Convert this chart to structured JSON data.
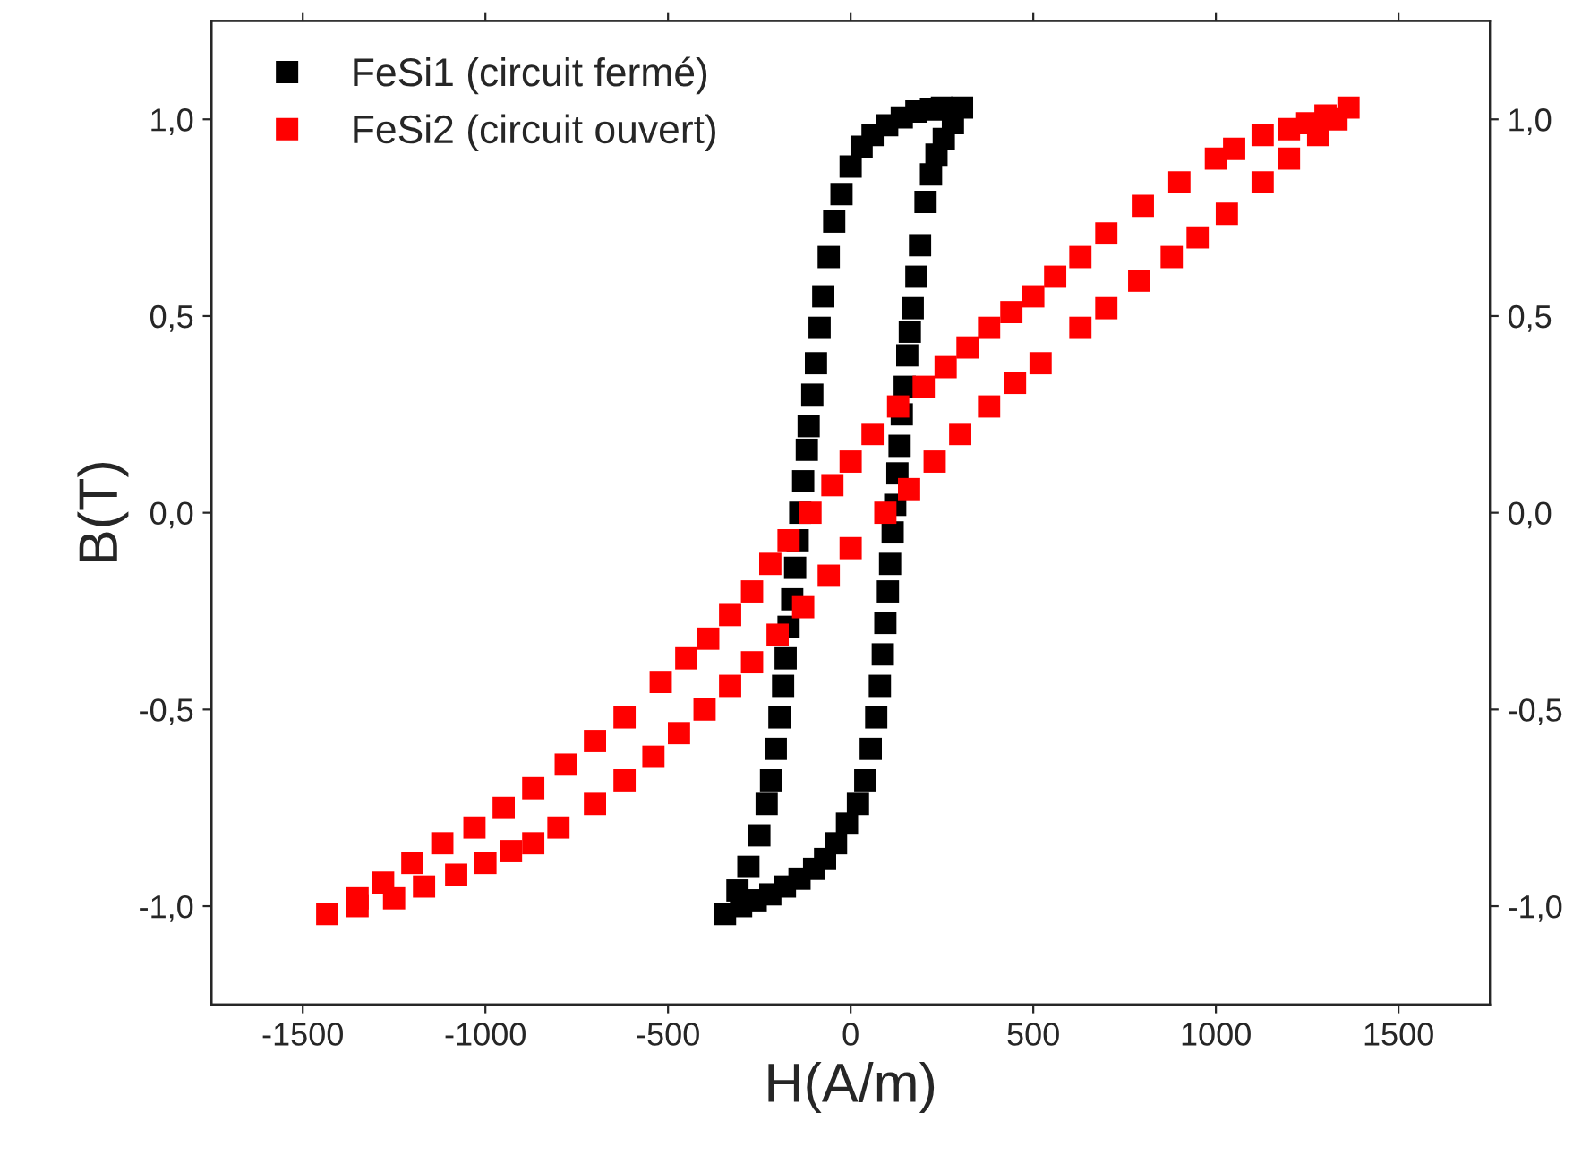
{
  "chart_data": {
    "type": "scatter",
    "xlabel": "H(A/m)",
    "ylabel": "B(T)",
    "xlim": [
      -1750,
      1750
    ],
    "xticks": [
      -1500,
      -1000,
      -500,
      0,
      500,
      1000,
      1500
    ],
    "ylim": [
      -1.25,
      1.25
    ],
    "yticks": [
      {
        "value": -1.0,
        "label": "-1,0"
      },
      {
        "value": -0.5,
        "label": "-0,5"
      },
      {
        "value": 0.0,
        "label": "0,0"
      },
      {
        "value": 0.5,
        "label": "0,5"
      },
      {
        "value": 1.0,
        "label": "1,0"
      }
    ],
    "y2lim": [
      -1.25,
      1.25
    ],
    "y2ticks": [
      {
        "value": -1.0,
        "label": "-1,0"
      },
      {
        "value": -0.5,
        "label": "-0,5"
      },
      {
        "value": 0.0,
        "label": "0,0"
      },
      {
        "value": 0.5,
        "label": "0,5"
      },
      {
        "value": 1.0,
        "label": "1,0"
      }
    ],
    "marker": "square",
    "grid": false,
    "legend": "top left",
    "series": [
      {
        "name": "FeSi1 (circuit fermé)",
        "color": "#000000",
        "x": [
          305,
          250,
          220,
          180,
          140,
          100,
          60,
          30,
          0,
          -25,
          -45,
          -60,
          -75,
          -85,
          -95,
          -105,
          -115,
          -120,
          -130,
          -138,
          -145,
          -152,
          -160,
          -170,
          -178,
          -185,
          -195,
          -205,
          -218,
          -230,
          -250,
          -280,
          -310,
          -344,
          -300,
          -260,
          -220,
          -180,
          -140,
          -100,
          -70,
          -40,
          -10,
          20,
          40,
          55,
          70,
          80,
          88,
          95,
          102,
          108,
          115,
          122,
          128,
          134,
          140,
          148,
          155,
          162,
          170,
          180,
          190,
          205,
          220,
          235,
          255,
          280
        ],
        "values": [
          1.03,
          1.03,
          1.025,
          1.02,
          1.005,
          0.985,
          0.96,
          0.93,
          0.88,
          0.81,
          0.74,
          0.65,
          0.55,
          0.47,
          0.38,
          0.3,
          0.22,
          0.16,
          0.08,
          0.0,
          -0.07,
          -0.14,
          -0.22,
          -0.29,
          -0.37,
          -0.44,
          -0.52,
          -0.6,
          -0.68,
          -0.74,
          -0.82,
          -0.9,
          -0.96,
          -1.02,
          -1.0,
          -0.985,
          -0.97,
          -0.95,
          -0.93,
          -0.905,
          -0.88,
          -0.84,
          -0.79,
          -0.74,
          -0.68,
          -0.6,
          -0.52,
          -0.44,
          -0.36,
          -0.28,
          -0.2,
          -0.13,
          -0.05,
          0.02,
          0.1,
          0.17,
          0.25,
          0.32,
          0.4,
          0.46,
          0.52,
          0.6,
          0.68,
          0.79,
          0.86,
          0.91,
          0.95,
          0.99
        ]
      },
      {
        "name": "FeSi2 (circuit ouvert)",
        "color": "#ff0000",
        "x": [
          1363,
          1300,
          1250,
          1200,
          1128,
          1050,
          1000,
          900,
          800,
          700,
          629,
          560,
          500,
          440,
          379,
          320,
          260,
          200,
          130,
          60,
          0,
          -50,
          -110,
          -170,
          -220,
          -270,
          -330,
          -390,
          -450,
          -520,
          -619,
          -700,
          -780,
          -869,
          -950,
          -1030,
          -1118,
          -1200,
          -1280,
          -1350,
          -1433,
          -1350,
          -1250,
          -1168,
          -1080,
          -1000,
          -930,
          -869,
          -800,
          -700,
          -619,
          -540,
          -470,
          -400,
          -330,
          -270,
          -200,
          -130,
          -60,
          0,
          95,
          160,
          230,
          300,
          379,
          450,
          520,
          629,
          700,
          790,
          879,
          950,
          1030,
          1128,
          1200,
          1280,
          1330
        ],
        "values": [
          1.03,
          1.01,
          0.99,
          0.975,
          0.96,
          0.925,
          0.9,
          0.84,
          0.78,
          0.71,
          0.65,
          0.6,
          0.55,
          0.51,
          0.47,
          0.42,
          0.37,
          0.32,
          0.27,
          0.2,
          0.13,
          0.07,
          0.0,
          -0.07,
          -0.13,
          -0.2,
          -0.26,
          -0.32,
          -0.37,
          -0.43,
          -0.52,
          -0.58,
          -0.64,
          -0.7,
          -0.75,
          -0.8,
          -0.84,
          -0.89,
          -0.94,
          -0.98,
          -1.02,
          -1.0,
          -0.98,
          -0.95,
          -0.92,
          -0.89,
          -0.86,
          -0.84,
          -0.8,
          -0.74,
          -0.68,
          -0.62,
          -0.56,
          -0.5,
          -0.44,
          -0.38,
          -0.31,
          -0.24,
          -0.16,
          -0.09,
          0.0,
          0.06,
          0.13,
          0.2,
          0.27,
          0.33,
          0.38,
          0.47,
          0.52,
          0.59,
          0.65,
          0.7,
          0.76,
          0.84,
          0.9,
          0.96,
          1.0
        ]
      }
    ]
  }
}
